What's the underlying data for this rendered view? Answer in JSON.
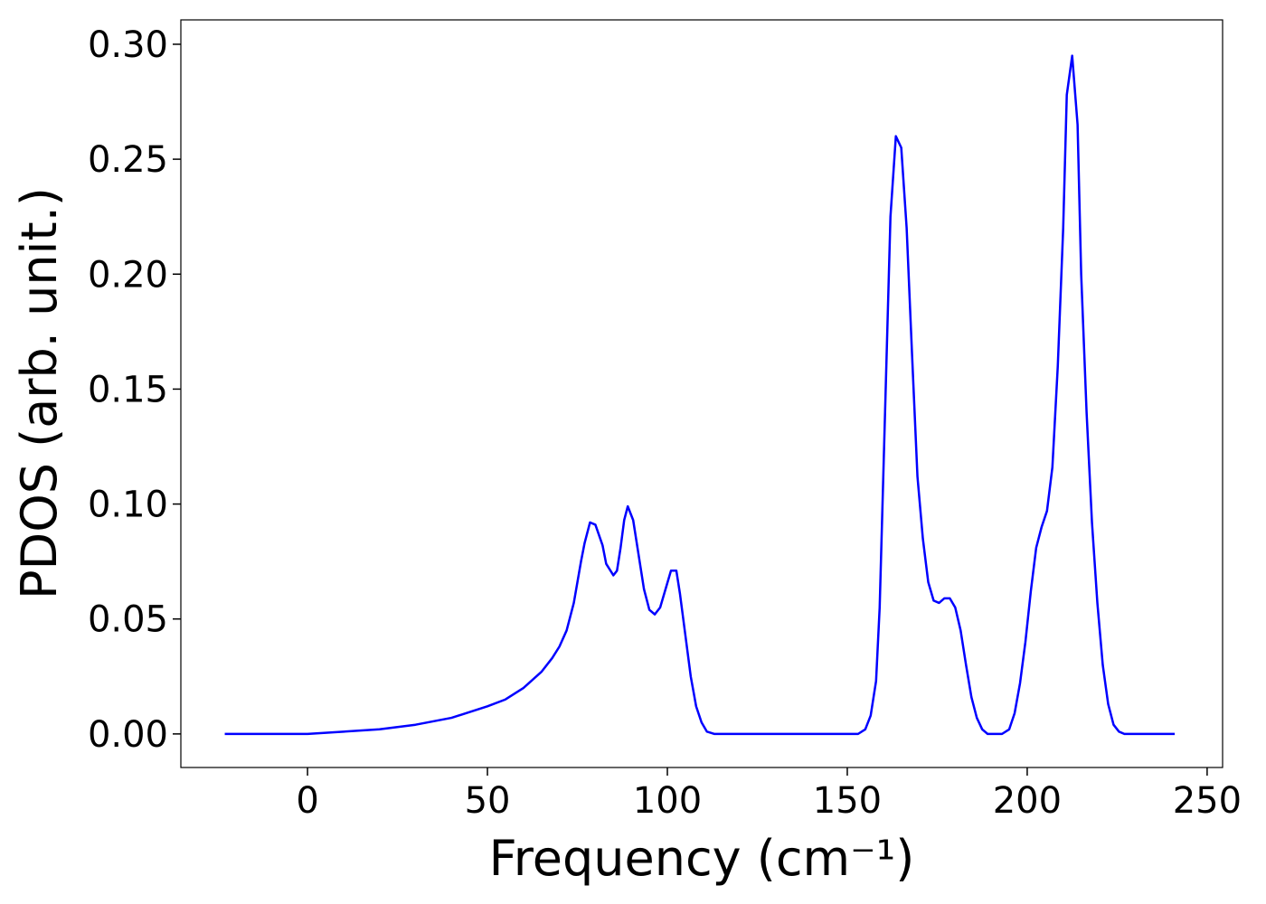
{
  "chart_data": {
    "type": "line",
    "xlabel": "Frequency (cm⁻¹)",
    "ylabel": "PDOS (arb. unit.)",
    "xlim": [
      -35.2,
      254.3
    ],
    "ylim": [
      -0.0146,
      0.3106
    ],
    "xticks": [
      0,
      50,
      100,
      150,
      200,
      250
    ],
    "yticks": [
      {
        "value": 0,
        "label": "0.00"
      },
      {
        "value": 0.05,
        "label": "0.05"
      },
      {
        "value": 0.1,
        "label": "0.10"
      },
      {
        "value": 0.15,
        "label": "0.15"
      },
      {
        "value": 0.2,
        "label": "0.20"
      },
      {
        "value": 0.25,
        "label": "0.25"
      },
      {
        "value": 0.3,
        "label": "0.30"
      }
    ],
    "grid": false,
    "x": [
      -23,
      0,
      10,
      20,
      30,
      40,
      50,
      55,
      60,
      65,
      68,
      70,
      72,
      74,
      76,
      77,
      78.5,
      80,
      82,
      83,
      85,
      86,
      87,
      88,
      89,
      90.5,
      92,
      93.5,
      95,
      96.5,
      98,
      99.5,
      101,
      102.5,
      103.5,
      105,
      106.5,
      108,
      109.5,
      111,
      113,
      153,
      155,
      156.5,
      158,
      159,
      160.5,
      162,
      163.5,
      165,
      166.5,
      168,
      169.5,
      171,
      172.5,
      174,
      175.5,
      177,
      178.5,
      180,
      181.5,
      183,
      184.5,
      186,
      187.5,
      189,
      193,
      195,
      196.5,
      198,
      199.5,
      201,
      202.5,
      204,
      205.5,
      207,
      208.5,
      210,
      211,
      212.5,
      214,
      215,
      216.5,
      218,
      219.5,
      221,
      222.5,
      224,
      225.5,
      227,
      241
    ],
    "series": [
      {
        "color": "#0000ff",
        "values": [
          0,
          0,
          0.001,
          0.002,
          0.004,
          0.007,
          0.012,
          0.015,
          0.02,
          0.027,
          0.033,
          0.038,
          0.045,
          0.057,
          0.075,
          0.083,
          0.092,
          0.091,
          0.082,
          0.074,
          0.069,
          0.071,
          0.081,
          0.093,
          0.099,
          0.093,
          0.078,
          0.063,
          0.054,
          0.052,
          0.055,
          0.063,
          0.071,
          0.071,
          0.061,
          0.043,
          0.025,
          0.012,
          0.005,
          0.001,
          0,
          0,
          0.002,
          0.008,
          0.023,
          0.055,
          0.14,
          0.225,
          0.26,
          0.255,
          0.22,
          0.165,
          0.112,
          0.085,
          0.066,
          0.058,
          0.057,
          0.059,
          0.059,
          0.055,
          0.045,
          0.03,
          0.016,
          0.007,
          0.002,
          0,
          0,
          0.002,
          0.009,
          0.022,
          0.04,
          0.062,
          0.081,
          0.09,
          0.097,
          0.116,
          0.16,
          0.22,
          0.278,
          0.295,
          0.265,
          0.2,
          0.14,
          0.092,
          0.057,
          0.03,
          0.013,
          0.004,
          0.001,
          0,
          0
        ]
      }
    ]
  }
}
